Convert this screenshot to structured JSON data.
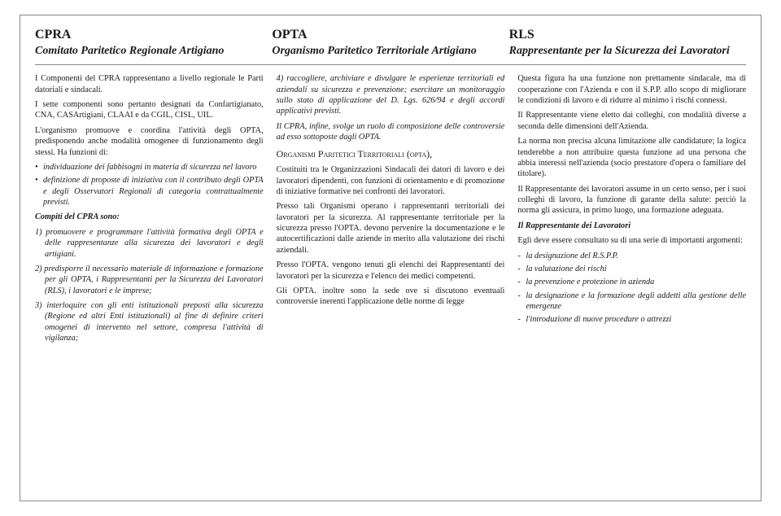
{
  "header": {
    "col1": {
      "acronym": "CPRA",
      "expansion": "Comitato Paritetico Regionale Artigiano"
    },
    "col2": {
      "acronym": "OPTA",
      "expansion": "Organismo Paritetico Territoriale Artigiano"
    },
    "col3": {
      "acronym": "RLS",
      "expansion": "Rappresentante per la Sicurezza dei Lavoratori"
    }
  },
  "col1": {
    "p1": "I Componenti del CPRA rappresentano a livello regionale le Parti datoriali e sindacali.",
    "p2": "I sette componenti sono pertanto designati da Confartigianato, CNA, CASArtigiani, CLAAI e da CGIL, CISL, UIL.",
    "p3": "L'organismo promuove e coordina l'attività degli OPTA, predisponendo anche modalità omogenee di funzionamento degli stessi. Ha funzioni di:",
    "b1": "individuazione dei fabbisogni in materia di sicurezza nel lavoro",
    "b2": "definizione di proposte di iniziativa con il contributo degli OPTA e degli Osservatori Regionali di categoria contrattualmente previsti.",
    "compiti": "Compiti del CPRA sono:",
    "n1": "1) promuovere e programmare l'attività formativa degli OPTA e delle rappresentanze alla sicurezza dei lavoratori e degli artigiani.",
    "n2": "2) predisporre il necessario materiale di informazione e formazione per gli OPTA, i Rappresentanti per la Sicurezza dei Lavoratori (RLS), i lavoratori e le imprese;",
    "n3": "3) interloquire con gli enti istituzionali preposti alla sicurezza (Regione ed altri Enti istituzionali) al fine di definire criteri omogenei di intervento nel settore, compresa l'attività di vigilanza;"
  },
  "col2": {
    "p1": "4) raccogliere, archiviare e divulgare le esperienze territoriali ed aziendali su sicurezza e prevenzione; esercitare un monitoraggio sullo stato di applicazione del D. Lgs. 626/94 e degli accordi applicativi previsti.",
    "p2": "Il CPRA, infine, svolge un ruolo di composizione delle controversie ad esso sottoposte dagli OPTA.",
    "title": "Organismi Paritetici Territoriali (opta),",
    "p3": "Costituiti tra le Organizzazioni Sindacali dei datori di lavoro e dei lavoratori dipendenti, con funzioni di orientamento e di promozione di iniziative formative nei confronti dei lavoratori.",
    "p4": "Presso tali Organismi operano i rappresentanti territoriali dei lavoratori per la sicurezza. Al rappresentante territoriale per la sicurezza presso l'OPTA. devono pervenire la documentazione e le autocertificazioni dalle aziende in merito alla valutazione dei rischi aziendali.",
    "p5": "Presso l'OPTA. vengono tenuti gli elenchi dei Rappresentanti dei lavoratori per la sicurezza e l'elenco dei medici competenti.",
    "p6": "Gli OPTA. inoltre sono la sede ove si discutono eventuali controversie inerenti l'applicazione delle norme di legge"
  },
  "col3": {
    "p1": "Questa figura ha una funzione non prettamente sindacale, ma di cooperazione con l'Azienda e con il S.P.P. allo scopo di migliorare le condizioni di lavoro e di ridurre al minimo i rischi connessi.",
    "p2": "Il Rappresentante viene eletto dai colleghi, con modalità diverse a seconda delle dimensioni dell'Azienda.",
    "p3": "La norma non precisa alcuna limitazione alle candidature; la logica tenderebbe a non attribuire questa funzione ad una persona che abbia interessi nell'azienda (socio prestatore d'opera o familiare del titolare).",
    "p4": "Il Rappresentante dei lavoratori assume in un certo senso, per i suoi colleghi di lavoro, la funzione di garante della salute: perciò la norma gli assicura, in primo luogo, una formazione adeguata.",
    "subtitle": "Il Rappresentante dei Lavoratori",
    "p5": "Egli deve essere consultato su di una serie di importanti argomenti:",
    "d1": "la designazione del R.S.P.P.",
    "d2": "la valutazione dei rischi",
    "d3": "la prevenzione e protezione in azienda",
    "d4": "la designazione e la formazione degli addetti alla gestione delle emergenze",
    "d5": "l'introduzione di nuove procedure o attrezzi"
  }
}
